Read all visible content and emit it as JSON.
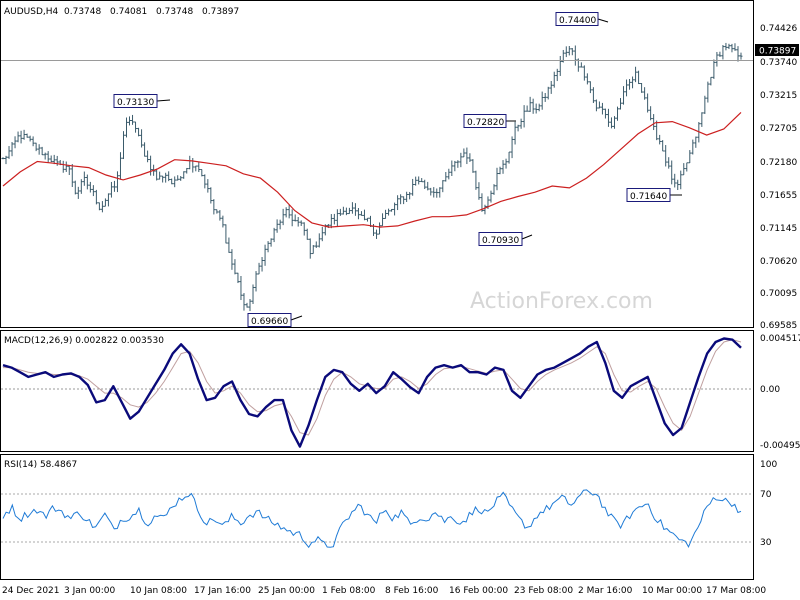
{
  "watermark": "ActionForex.com",
  "chart_data": [
    {
      "type": "candlestick",
      "title": "AUDUSD,H4",
      "ohlc": [
        "0.73748",
        "0.74081",
        "0.73748",
        "0.73897"
      ],
      "last_price": "0.73897",
      "ylim": [
        0.69585,
        0.74426
      ],
      "yticks": [
        "0.74426",
        "0.73740",
        "0.73215",
        "0.72705",
        "0.72180",
        "0.71655",
        "0.71145",
        "0.70620",
        "0.70095",
        "0.69585"
      ],
      "xlabels": [
        "24 Dec 2021",
        "3 Jan 00:00",
        "10 Jan 08:00",
        "17 Jan 16:00",
        "25 Jan 00:00",
        "1 Feb 08:00",
        "8 Feb 16:00",
        "16 Feb 00:00",
        "23 Feb 08:00",
        "2 Mar 16:00",
        "10 Mar 00:00",
        "17 Mar 08:00"
      ],
      "colors": {
        "bars": "#3b5b6b",
        "moving_average": "#cc2020",
        "price_line": "#9a9a9a"
      },
      "close_path": [
        0.7228,
        0.7245,
        0.7268,
        0.7262,
        0.7248,
        0.7238,
        0.7228,
        0.7216,
        0.7218,
        0.7172,
        0.7195,
        0.7176,
        0.7148,
        0.7172,
        0.7188,
        0.7282,
        0.7292,
        0.7252,
        0.7222,
        0.7196,
        0.7205,
        0.7186,
        0.7206,
        0.7224,
        0.7219,
        0.7188,
        0.7146,
        0.7126,
        0.7068,
        0.7026,
        0.6978,
        0.7028,
        0.7072,
        0.7098,
        0.7126,
        0.7142,
        0.7128,
        0.7118,
        0.7075,
        0.7102,
        0.7122,
        0.7134,
        0.7145,
        0.7148,
        0.7132,
        0.7128,
        0.7108,
        0.7136,
        0.7148,
        0.7165,
        0.7172,
        0.7198,
        0.7185,
        0.7176,
        0.7182,
        0.7208,
        0.7225,
        0.7242,
        0.7208,
        0.7145,
        0.7172,
        0.7205,
        0.7225,
        0.7272,
        0.7298,
        0.7315,
        0.7312,
        0.7336,
        0.7362,
        0.7398,
        0.7408,
        0.7382,
        0.7362,
        0.7315,
        0.7308,
        0.7282,
        0.7318,
        0.7348,
        0.7366,
        0.7336,
        0.7282,
        0.7258,
        0.7216,
        0.7178,
        0.7212,
        0.7248,
        0.7292,
        0.7356,
        0.7395,
        0.7415,
        0.7405,
        0.7392
      ],
      "ma_path": [
        0.7185,
        0.7208,
        0.7225,
        0.7222,
        0.7218,
        0.7215,
        0.7203,
        0.7195,
        0.7203,
        0.7213,
        0.7228,
        0.7226,
        0.7222,
        0.7218,
        0.7205,
        0.7198,
        0.7175,
        0.7145,
        0.7125,
        0.7118,
        0.712,
        0.7122,
        0.7118,
        0.712,
        0.7128,
        0.7135,
        0.7135,
        0.7138,
        0.7148,
        0.716,
        0.7168,
        0.7175,
        0.7185,
        0.7182,
        0.7198,
        0.722,
        0.7245,
        0.727,
        0.7288,
        0.729,
        0.728,
        0.7268,
        0.7278,
        0.7305
      ],
      "labels": [
        {
          "text": "0.74400",
          "value": 0.744
        },
        {
          "text": "0.73130",
          "value": 0.7313
        },
        {
          "text": "0.72820",
          "value": 0.7282
        },
        {
          "text": "0.71640",
          "value": 0.7164
        },
        {
          "text": "0.70930",
          "value": 0.7093
        },
        {
          "text": "0.69660",
          "value": 0.6966
        }
      ]
    },
    {
      "type": "line",
      "title": "MACD(12,26,9) 0.002822 0.003530",
      "ylim": [
        -0.00495,
        0.004517
      ],
      "yticks": [
        "0.004517",
        "0.00",
        "-0.00495"
      ],
      "colors": {
        "macd": "#0a0a7a",
        "signal": "#c0a0a0",
        "zero": "#999999"
      },
      "series": [
        {
          "values": [
            0.002,
            0.0018,
            0.0014,
            0.001,
            0.0012,
            0.0014,
            0.001,
            0.0012,
            0.0013,
            0.001,
            0.0003,
            -0.0012,
            -0.001,
            0.0002,
            -0.0012,
            -0.0026,
            -0.002,
            -0.0008,
            0.0004,
            0.0016,
            0.003,
            0.0038,
            0.003,
            0.0008,
            -0.001,
            -0.0008,
            0.0002,
            0.0006,
            -0.001,
            -0.0022,
            -0.0024,
            -0.0016,
            -0.001,
            -0.001,
            -0.0036,
            -0.005,
            -0.0032,
            -0.001,
            0.001,
            0.0016,
            0.0014,
            0.0004,
            -0.0002,
            0.0004,
            -0.0004,
            0.0002,
            0.0014,
            0.0008,
            0.0001,
            -0.0004,
            0.001,
            0.0018,
            0.002,
            0.0018,
            0.002,
            0.0014,
            0.0014,
            0.0012,
            0.0018,
            0.0016,
            -0.0002,
            -0.0008,
            0.0002,
            0.0012,
            0.0016,
            0.0018,
            0.0022,
            0.0026,
            0.003,
            0.0036,
            0.004,
            0.0022,
            -0.0002,
            -0.0008,
            0.0002,
            0.0006,
            0.001,
            -0.001,
            -0.003,
            -0.004,
            -0.0034,
            -0.0012,
            0.001,
            0.003,
            0.004,
            0.0043,
            0.0042,
            0.0035
          ]
        },
        {
          "values": [
            0.0018,
            0.0018,
            0.0016,
            0.0014,
            0.0013,
            0.0013,
            0.0012,
            0.0012,
            0.0012,
            0.0011,
            0.0008,
            0.0002,
            -0.0004,
            -0.0004,
            -0.0008,
            -0.0014,
            -0.0016,
            -0.0012,
            -0.0004,
            0.0006,
            0.0018,
            0.003,
            0.0032,
            0.0022,
            0.0006,
            -0.0004,
            -0.0002,
            0.0002,
            -0.0004,
            -0.0014,
            -0.002,
            -0.0019,
            -0.0015,
            -0.0013,
            -0.0024,
            -0.0038,
            -0.004,
            -0.0026,
            -0.0006,
            0.0008,
            0.0014,
            0.001,
            0.0004,
            0.0002,
            0.0,
            0.0,
            0.0008,
            0.001,
            0.0006,
            0.0,
            0.0004,
            0.0012,
            0.0017,
            0.0018,
            0.0019,
            0.0017,
            0.0015,
            0.0013,
            0.0015,
            0.0016,
            0.0008,
            0.0,
            -0.0002,
            0.0006,
            0.0012,
            0.0016,
            0.0019,
            0.0022,
            0.0026,
            0.0031,
            0.0036,
            0.003,
            0.0012,
            -0.0002,
            -0.0003,
            0.0002,
            0.0006,
            0.0,
            -0.0016,
            -0.003,
            -0.0036,
            -0.0024,
            -0.0004,
            0.0016,
            0.0032,
            0.004,
            0.0042,
            0.004
          ]
        }
      ]
    },
    {
      "type": "line",
      "title": "RSI(14) 58.4867",
      "ylim": [
        0,
        100
      ],
      "yticks": [
        "100",
        "70",
        "30"
      ],
      "colors": {
        "rsi": "#1f7bd6",
        "levels": "#aaaaaa"
      },
      "series": [
        {
          "values": [
            55,
            62,
            52,
            57,
            60,
            54,
            62,
            58,
            52,
            58,
            50,
            44,
            56,
            42,
            52,
            54,
            60,
            48,
            55,
            52,
            64,
            70,
            75,
            60,
            48,
            52,
            45,
            54,
            48,
            55,
            58,
            52,
            48,
            44,
            40,
            38,
            30,
            34,
            28,
            30,
            46,
            56,
            64,
            55,
            48,
            62,
            52,
            58,
            46,
            54,
            52,
            58,
            50,
            54,
            48,
            55,
            62,
            56,
            66,
            72,
            60,
            50,
            44,
            56,
            60,
            66,
            70,
            64,
            72,
            76,
            74,
            60,
            50,
            46,
            56,
            62,
            66,
            52,
            44,
            38,
            32,
            30,
            46,
            62,
            72,
            68,
            66,
            58
          ]
        }
      ]
    }
  ]
}
